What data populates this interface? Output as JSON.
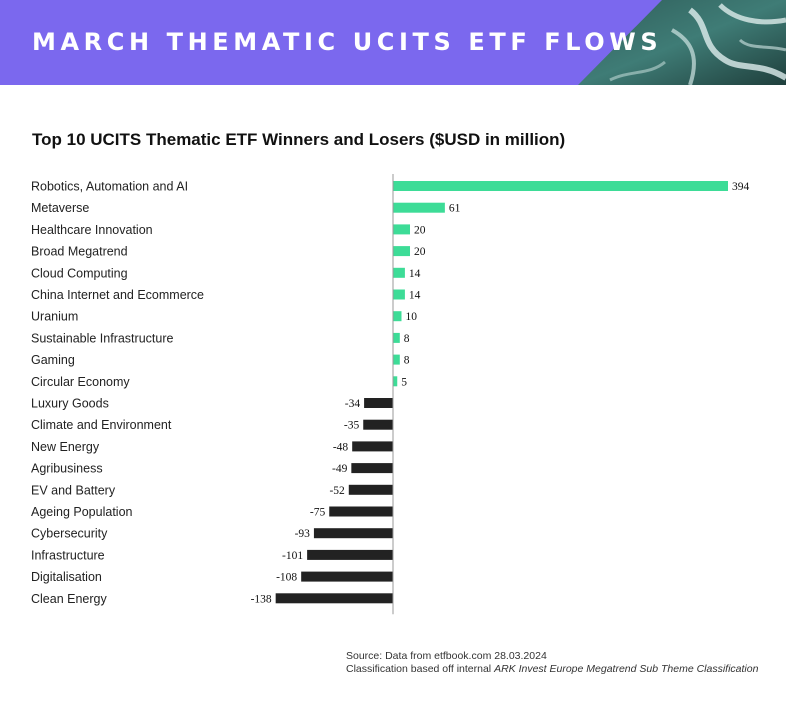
{
  "header": {
    "title": "MARCH THEMATIC UCITS ETF FLOWS",
    "bg_color": "#7b68ee"
  },
  "chart_data": {
    "type": "bar",
    "orientation": "horizontal",
    "title": "Top 10 UCITS Thematic ETF Winners and Losers ($USD in million)",
    "categories": [
      "Robotics, Automation and AI",
      "Metaverse",
      "Healthcare Innovation",
      "Broad Megatrend",
      "Cloud Computing",
      "China Internet and Ecommerce",
      "Uranium",
      "Sustainable Infrastructure",
      "Gaming",
      "Circular Economy",
      "Luxury Goods",
      "Climate and Environment",
      "New Energy",
      "Agribusiness",
      "EV and Battery",
      "Ageing Population",
      "Cybersecurity",
      "Infrastructure",
      "Digitalisation",
      "Clean Energy"
    ],
    "values": [
      394,
      61,
      20,
      20,
      14,
      14,
      10,
      8,
      8,
      5,
      -34,
      -35,
      -48,
      -49,
      -52,
      -75,
      -93,
      -101,
      -108,
      -138
    ],
    "positive_color": "#3ddc97",
    "negative_color": "#222222",
    "data_labels": true,
    "legend": "none",
    "grid": false
  },
  "footer": {
    "source": "Source: Data from etfbook.com 28.03.2024",
    "classification_prefix": "Classification based off internal ",
    "classification_italic": "ARK Invest Europe Megatrend Sub Theme Classification"
  }
}
